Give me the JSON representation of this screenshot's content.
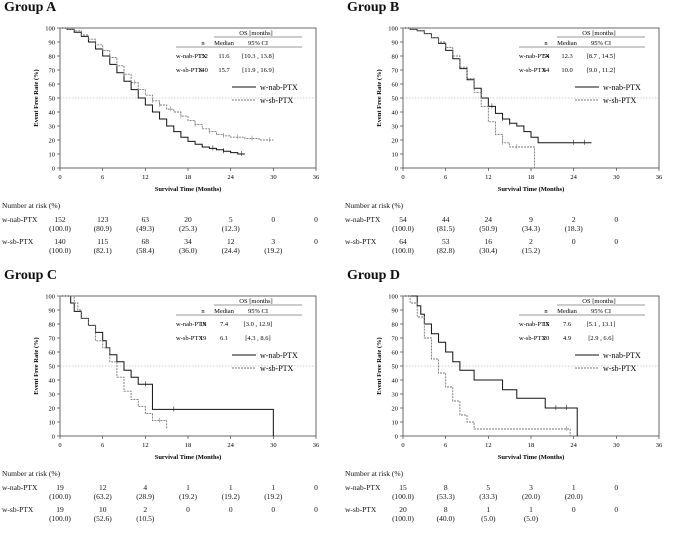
{
  "chart_data": [
    {
      "type": "line",
      "id": "A",
      "title": "Group A",
      "xlabel": "Survival Time (Months)",
      "ylabel": "Event Free Rate (%)",
      "xlim": [
        0,
        36
      ],
      "ylim": [
        0,
        100
      ],
      "xticks": [
        "0",
        "6",
        "12",
        "18",
        "24",
        "30",
        "36"
      ],
      "yticks": [
        "0",
        "10",
        "20",
        "30",
        "40",
        "50",
        "60",
        "70",
        "80",
        "90",
        "100"
      ],
      "reference_line": 50,
      "series": [
        {
          "name": "w-nab-PTX",
          "style": "solid",
          "x": [
            0,
            1,
            2,
            3,
            4,
            5,
            6,
            7,
            8,
            9,
            10,
            11,
            12,
            13,
            14,
            15,
            16,
            17,
            18,
            19,
            20,
            21,
            22,
            23,
            24,
            25,
            26
          ],
          "y": [
            100,
            99,
            97,
            94,
            90,
            85,
            80,
            74,
            68,
            62,
            56,
            50,
            45,
            40,
            35,
            30,
            26,
            22,
            19,
            17,
            15,
            14,
            13,
            12,
            11,
            10,
            10
          ],
          "censor_x": [
            21.5,
            23,
            25.5
          ]
        },
        {
          "name": "w-sb-PTX",
          "style": "dashed",
          "x": [
            0,
            1,
            2,
            3,
            4,
            5,
            6,
            7,
            8,
            9,
            10,
            11,
            12,
            13,
            14,
            15,
            16,
            17,
            18,
            19,
            20,
            21,
            22,
            23,
            24,
            25,
            26,
            27,
            28,
            29,
            30
          ],
          "y": [
            100,
            99,
            98,
            95,
            92,
            88,
            84,
            79,
            73,
            67,
            61,
            56,
            52,
            48,
            45,
            42,
            40,
            37,
            34,
            31,
            28,
            26,
            24,
            23,
            22,
            22,
            21,
            21,
            20,
            20,
            20
          ],
          "censor_x": [
            9,
            10.5,
            13,
            14,
            15.5,
            17,
            19,
            21,
            23,
            25,
            27,
            29.5
          ]
        }
      ],
      "legend": {
        "position": "center-right"
      },
      "os_table": {
        "header": "OS [months]",
        "col_n": "n",
        "col_median": "Median",
        "col_ci": "95% CI",
        "rows": [
          {
            "group": "w-nab-PTX",
            "n": "152",
            "median": "11.6",
            "ci": "[10.3 , 13.8]"
          },
          {
            "group": "w-sb-PTX",
            "n": "140",
            "median": "15.7",
            "ci": "[11.9 , 16.9]"
          }
        ]
      },
      "at_risk": {
        "header": "Number at risk (%)",
        "rows": [
          {
            "group": "w-nab-PTX",
            "counts": [
              "152",
              "123",
              "63",
              "20",
              "5",
              "0",
              "0"
            ],
            "pcts": [
              "(100.0)",
              "(80.9)",
              "(49.3)",
              "(25.3)",
              "(12.3)",
              "",
              ""
            ]
          },
          {
            "group": "w-sb-PTX",
            "counts": [
              "140",
              "115",
              "68",
              "34",
              "12",
              "3",
              "0"
            ],
            "pcts": [
              "(100.0)",
              "(82.1)",
              "(58.4)",
              "(36.0)",
              "(24.4)",
              "(19.2)",
              ""
            ]
          }
        ]
      }
    },
    {
      "type": "line",
      "id": "B",
      "title": "Group B",
      "xlabel": "Survival Time (Months)",
      "ylabel": "Event Free Rate (%)",
      "xlim": [
        0,
        36
      ],
      "ylim": [
        0,
        100
      ],
      "xticks": [
        "0",
        "6",
        "12",
        "18",
        "24",
        "30",
        "36"
      ],
      "yticks": [
        "0",
        "10",
        "20",
        "30",
        "40",
        "50",
        "60",
        "70",
        "80",
        "90",
        "100"
      ],
      "reference_line": 50,
      "series": [
        {
          "name": "w-nab-PTX",
          "style": "solid",
          "x": [
            0,
            1,
            2,
            3,
            4,
            5,
            6,
            7,
            8,
            9,
            10,
            11,
            12,
            13,
            14,
            15,
            16,
            17,
            18,
            19,
            26.5
          ],
          "y": [
            100,
            99,
            98,
            96,
            93,
            89,
            84,
            78,
            71,
            63,
            57,
            50,
            44,
            39,
            35,
            32,
            30,
            26,
            22,
            18,
            18
          ],
          "censor_x": [
            12.5,
            14,
            15,
            24,
            25.5
          ]
        },
        {
          "name": "w-sb-PTX",
          "style": "dashed",
          "x": [
            0,
            1,
            2,
            3,
            4,
            5,
            6,
            7,
            8,
            9,
            10,
            11,
            12,
            13,
            14,
            15,
            16,
            17,
            18,
            18.5
          ],
          "y": [
            100,
            99,
            98,
            96,
            93,
            90,
            86,
            80,
            72,
            64,
            54,
            44,
            33,
            24,
            18,
            15,
            15,
            15,
            15,
            0
          ],
          "censor_x": [
            14,
            16
          ]
        }
      ],
      "legend": {
        "position": "center-right"
      },
      "os_table": {
        "header": "OS [months]",
        "col_n": "n",
        "col_median": "Median",
        "col_ci": "95% CI",
        "rows": [
          {
            "group": "w-nab-PTX",
            "n": "54",
            "median": "12.3",
            "ci": "[8.7 , 14.5]"
          },
          {
            "group": "w-sb-PTX",
            "n": "64",
            "median": "10.0",
            "ci": "[9.0 , 11.2]"
          }
        ]
      },
      "at_risk": {
        "header": "Number at risk (%)",
        "rows": [
          {
            "group": "w-nab-PTX",
            "counts": [
              "54",
              "44",
              "24",
              "9",
              "2",
              "0",
              ""
            ],
            "pcts": [
              "(100.0)",
              "(81.5)",
              "(50.9)",
              "(34.3)",
              "(18.3)",
              "",
              ""
            ]
          },
          {
            "group": "w-sb-PTX",
            "counts": [
              "64",
              "53",
              "16",
              "2",
              "0",
              "0",
              ""
            ],
            "pcts": [
              "(100.0)",
              "(82.8)",
              "(30.4)",
              "(15.2)",
              "",
              "",
              ""
            ]
          }
        ]
      }
    },
    {
      "type": "line",
      "id": "C",
      "title": "Group C",
      "xlabel": "Survival Time (Months)",
      "ylabel": "Event Free Rate (%)",
      "xlim": [
        0,
        36
      ],
      "ylim": [
        0,
        100
      ],
      "xticks": [
        "0",
        "6",
        "12",
        "18",
        "24",
        "30",
        "36"
      ],
      "yticks": [
        "0",
        "10",
        "20",
        "30",
        "40",
        "50",
        "60",
        "70",
        "80",
        "90",
        "100"
      ],
      "reference_line": 50,
      "series": [
        {
          "name": "w-nab-PTX",
          "style": "solid",
          "x": [
            0,
            1,
            1.5,
            2,
            3,
            4,
            5,
            6,
            6.5,
            7,
            8,
            9,
            10,
            11,
            13,
            30,
            30
          ],
          "y": [
            100,
            100,
            95,
            89,
            84,
            79,
            74,
            68,
            63,
            58,
            53,
            47,
            42,
            37,
            19,
            19,
            0
          ],
          "censor_x": [
            12,
            16
          ]
        },
        {
          "name": "w-sb-PTX",
          "style": "dashed",
          "x": [
            0,
            1,
            2,
            2.5,
            3,
            4,
            5,
            6,
            7,
            8,
            9,
            10,
            11,
            12,
            13,
            14,
            15,
            15
          ],
          "y": [
            100,
            100,
            95,
            90,
            84,
            79,
            68,
            63,
            53,
            42,
            32,
            26,
            21,
            16,
            11,
            11,
            11,
            5
          ],
          "censor_x": [
            14
          ]
        }
      ],
      "legend": {
        "position": "center-right"
      },
      "os_table": {
        "header": "OS [months]",
        "col_n": "n",
        "col_median": "Median",
        "col_ci": "95% CI",
        "rows": [
          {
            "group": "w-nab-PTX",
            "n": "19",
            "median": "7.4",
            "ci": "[3.0 , 12.9]"
          },
          {
            "group": "w-sb-PTX",
            "n": "19",
            "median": "6.1",
            "ci": "[4.3 , 8.6]"
          }
        ]
      },
      "at_risk": {
        "header": "Number at risk (%)",
        "rows": [
          {
            "group": "w-nab-PTX",
            "counts": [
              "19",
              "12",
              "4",
              "1",
              "1",
              "1",
              "0"
            ],
            "pcts": [
              "(100.0)",
              "(63.2)",
              "(28.9)",
              "(19.2)",
              "(19.2)",
              "(19.2)",
              ""
            ]
          },
          {
            "group": "w-sb-PTX",
            "counts": [
              "19",
              "10",
              "2",
              "0",
              "0",
              "0",
              "0"
            ],
            "pcts": [
              "(100.0)",
              "(52.6)",
              "(10.5)",
              "",
              "",
              "",
              ""
            ]
          }
        ]
      }
    },
    {
      "type": "line",
      "id": "D",
      "title": "Group D",
      "xlabel": "Survival Time (Months)",
      "ylabel": "Event Free Rate (%)",
      "xlim": [
        0,
        36
      ],
      "ylim": [
        0,
        100
      ],
      "xticks": [
        "0",
        "6",
        "12",
        "18",
        "24",
        "30",
        "36"
      ],
      "yticks": [
        "0",
        "10",
        "20",
        "30",
        "40",
        "50",
        "60",
        "70",
        "80",
        "90",
        "100"
      ],
      "reference_line": 50,
      "series": [
        {
          "name": "w-nab-PTX",
          "style": "solid",
          "x": [
            0,
            1,
            2,
            2.5,
            3,
            4,
            5,
            6,
            7,
            8,
            9,
            10,
            11,
            12,
            14,
            16,
            18,
            20,
            22,
            24,
            24.5
          ],
          "y": [
            100,
            100,
            93,
            87,
            80,
            73,
            67,
            60,
            53,
            47,
            47,
            40,
            40,
            40,
            33,
            27,
            27,
            20,
            20,
            20,
            0
          ],
          "censor_x": [
            21.5,
            23
          ]
        },
        {
          "name": "w-sb-PTX",
          "style": "dashed",
          "x": [
            0,
            1,
            2,
            3,
            4,
            5,
            6,
            7,
            8,
            9,
            10,
            12,
            14,
            16,
            18,
            20,
            22,
            23.5,
            23.5
          ],
          "y": [
            100,
            95,
            85,
            70,
            55,
            45,
            35,
            25,
            15,
            10,
            5,
            5,
            5,
            5,
            5,
            5,
            5,
            5,
            0
          ],
          "censor_x": [
            23
          ]
        }
      ],
      "legend": {
        "position": "center-right"
      },
      "os_table": {
        "header": "OS [months]",
        "col_n": "n",
        "col_median": "Median",
        "col_ci": "95% CI",
        "rows": [
          {
            "group": "w-nab-PTX",
            "n": "15",
            "median": "7.6",
            "ci": "[5.1 , 13.1]"
          },
          {
            "group": "w-sb-PTX",
            "n": "20",
            "median": "4.9",
            "ci": "[2.9 , 6.6]"
          }
        ]
      },
      "at_risk": {
        "header": "Number at risk (%)",
        "rows": [
          {
            "group": "w-nab-PTX",
            "counts": [
              "15",
              "8",
              "5",
              "3",
              "1",
              "0",
              ""
            ],
            "pcts": [
              "(100.0)",
              "(53.3)",
              "(33.3)",
              "(20.0)",
              "(20.0)",
              "",
              ""
            ]
          },
          {
            "group": "w-sb-PTX",
            "counts": [
              "20",
              "8",
              "1",
              "1",
              "0",
              "0",
              ""
            ],
            "pcts": [
              "(100.0)",
              "(40.0)",
              "(5.0)",
              "(5.0)",
              "",
              "",
              ""
            ]
          }
        ]
      }
    }
  ]
}
